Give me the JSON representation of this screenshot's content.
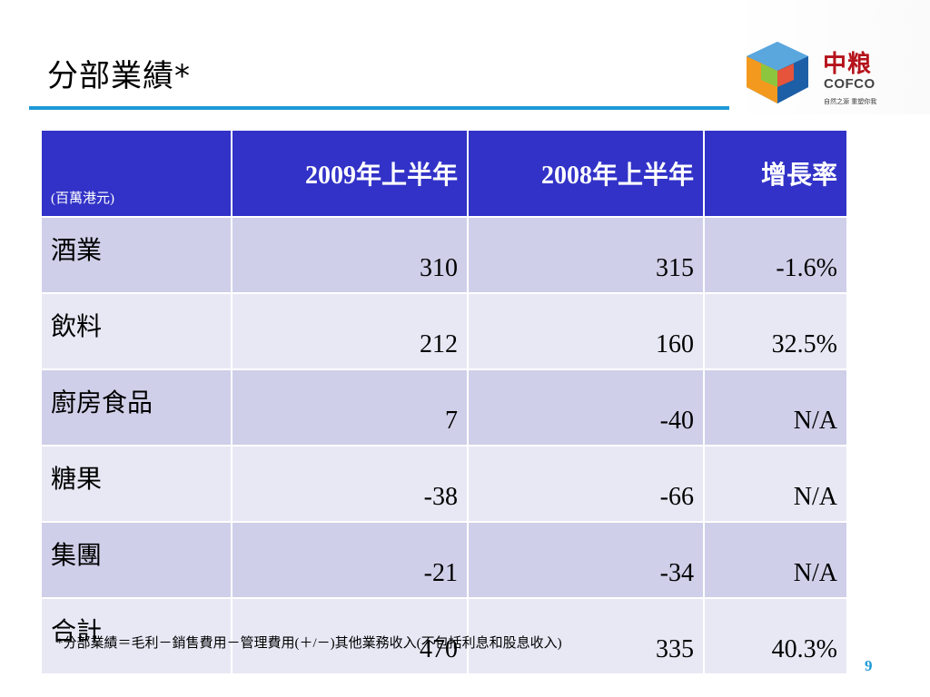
{
  "title": "分部業績*",
  "logo": {
    "cn": "中粮",
    "en": "COFCO",
    "tagline": "自然之源 重塑你我"
  },
  "table": {
    "unit": "(百萬港元)",
    "headers": [
      "2009年上半年",
      "2008年上半年",
      "增長率"
    ],
    "rows": [
      {
        "label": "酒業",
        "values": [
          "310",
          "315",
          "-1.6%"
        ]
      },
      {
        "label": "飲料",
        "values": [
          "212",
          "160",
          "32.5%"
        ]
      },
      {
        "label": "廚房食品",
        "values": [
          "7",
          "-40",
          "N/A"
        ]
      },
      {
        "label": "糖果",
        "values": [
          "-38",
          "-66",
          "N/A"
        ]
      },
      {
        "label": "集團",
        "values": [
          "-21",
          "-34",
          "N/A"
        ]
      },
      {
        "label": "合計",
        "values": [
          "470",
          "335",
          "40.3%"
        ]
      }
    ]
  },
  "footnote": "*分部業績＝毛利－銷售費用－管理費用(＋/－)其他業務收入(不包括利息和股息收入)",
  "page_number": "9",
  "colors": {
    "accent": "#1e9ad6",
    "header_bg": "#3232c8",
    "row_odd": "#cfcfe9",
    "row_even": "#e8e8f5",
    "logo_red": "#b5121b"
  }
}
